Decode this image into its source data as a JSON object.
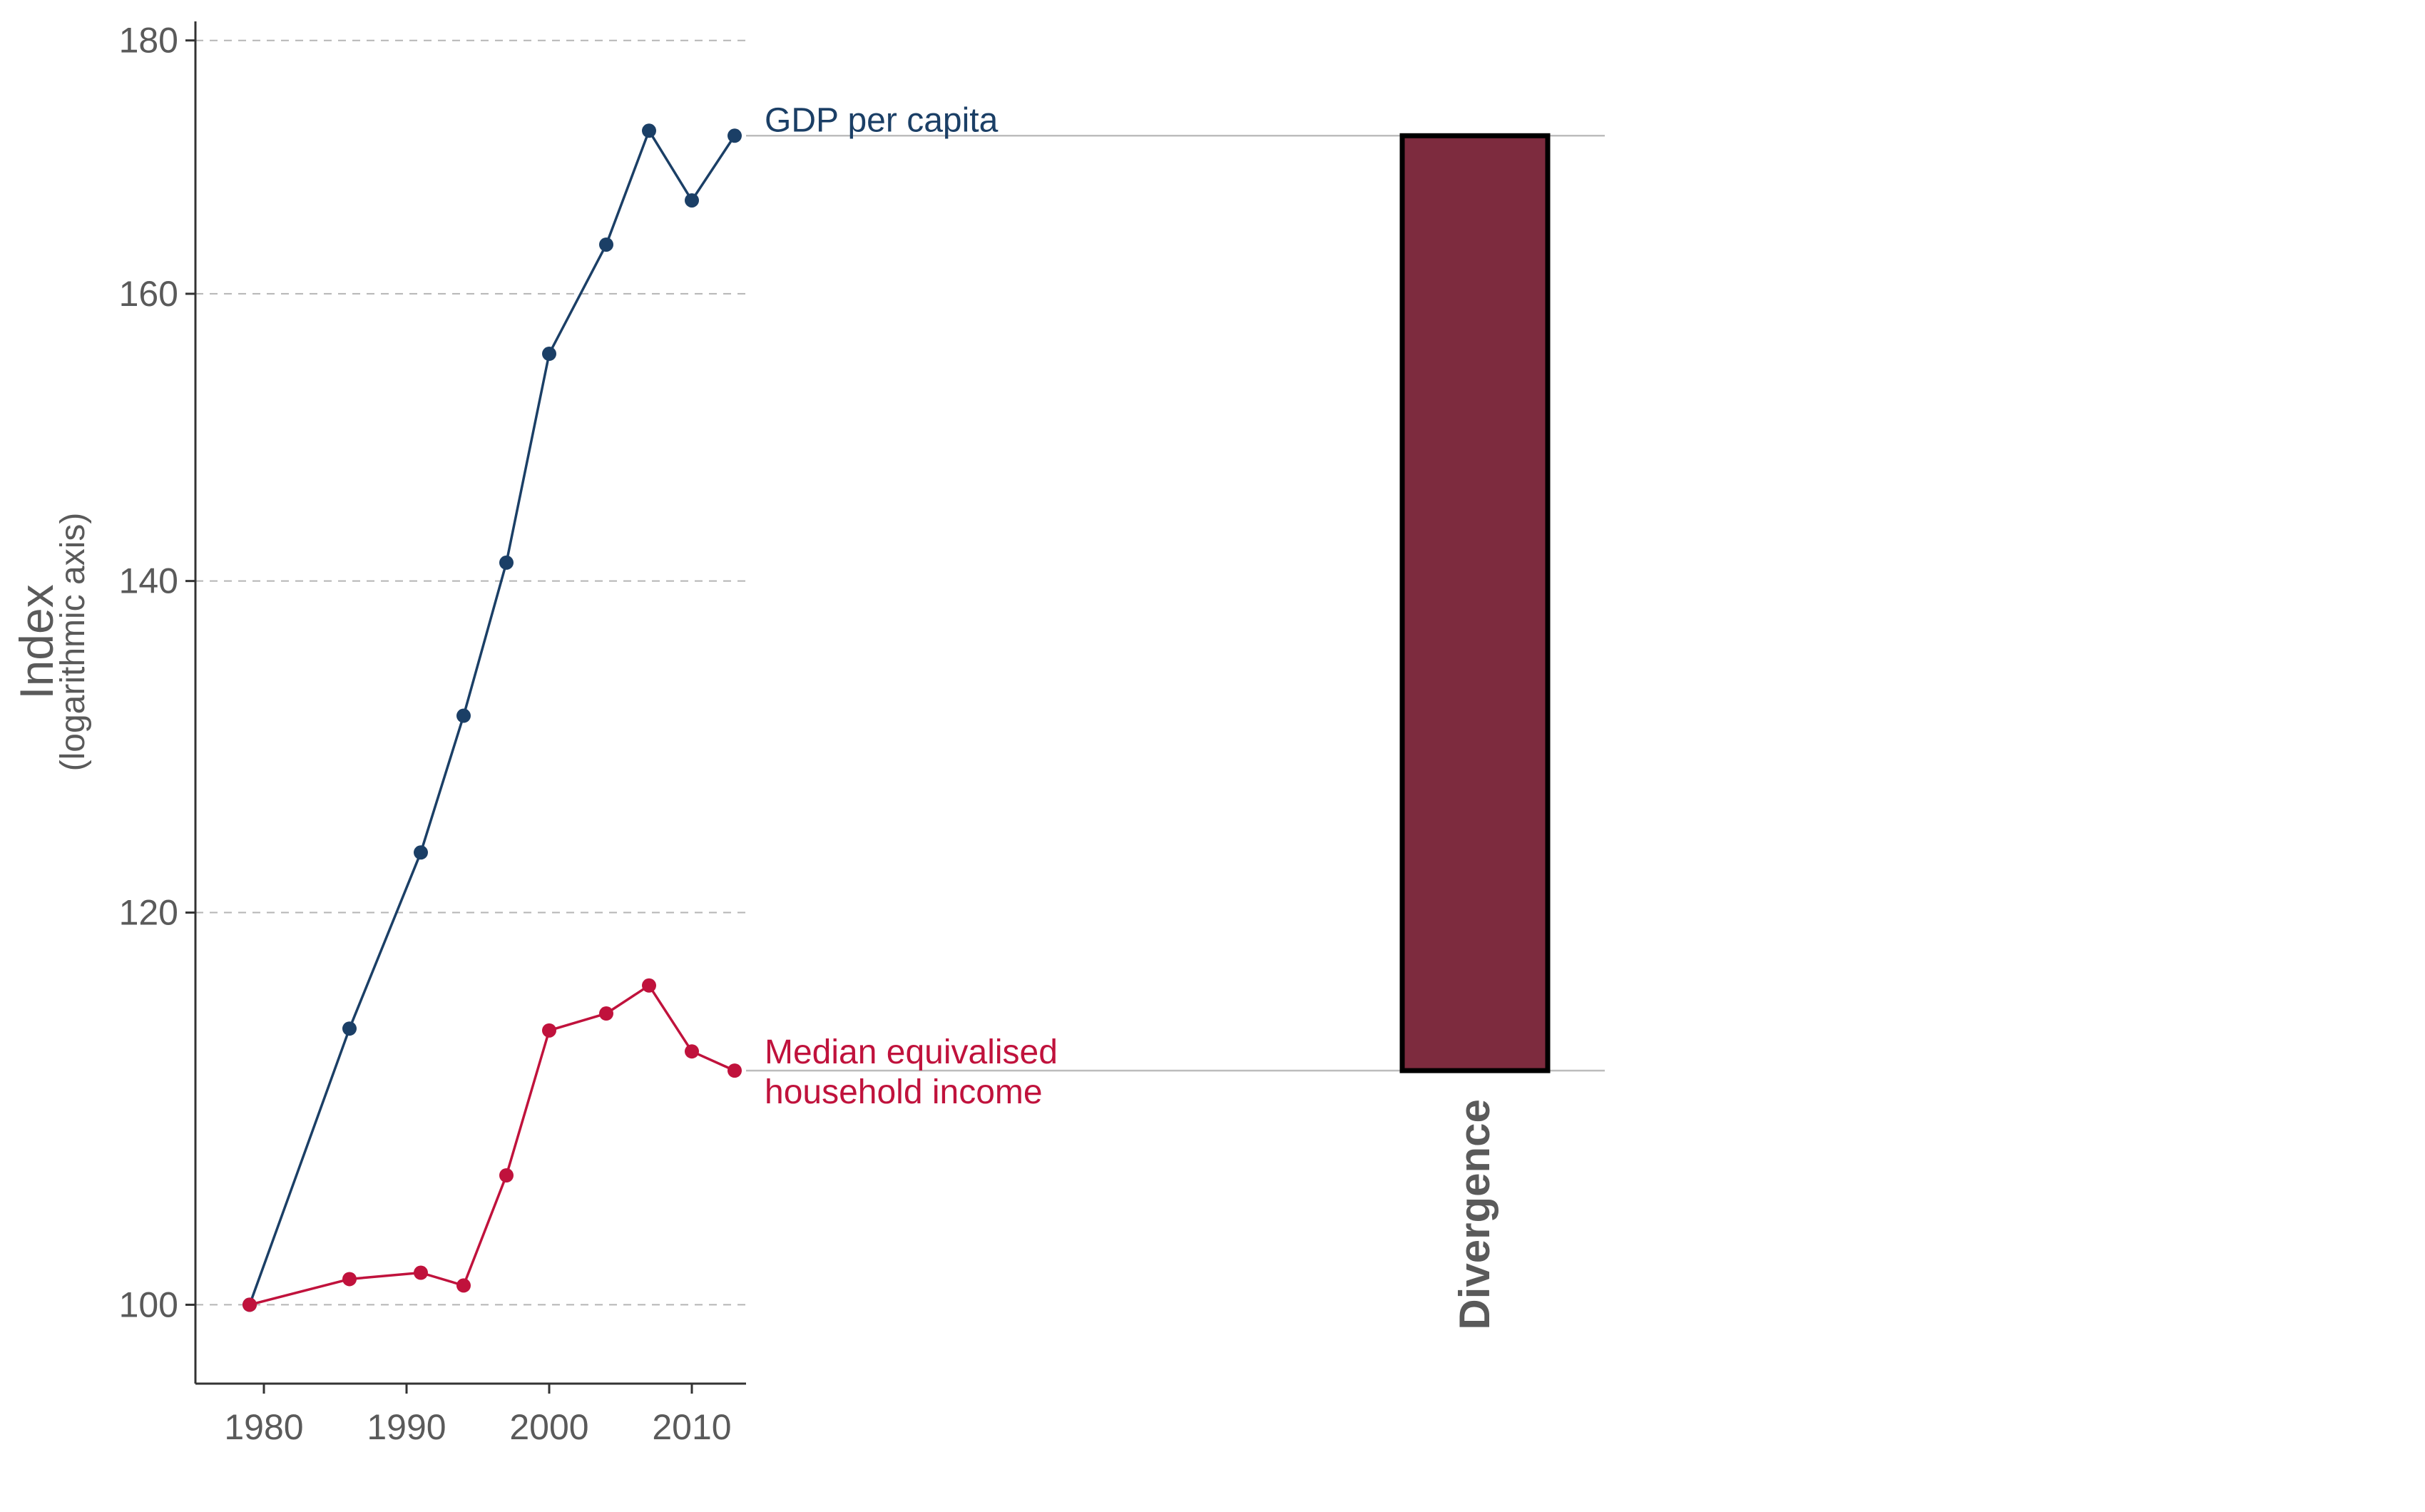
{
  "chart_data": {
    "type": "line",
    "ylabel": "Index",
    "ylabel_sub": "(logarithmic axis)",
    "y_scale": "log",
    "ylim": [
      96.4,
      181.6
    ],
    "xlim": [
      1975.2,
      2013.8
    ],
    "yticks": [
      100,
      120,
      140,
      160,
      180
    ],
    "xticks": [
      1980,
      1990,
      2000,
      2010
    ],
    "grid": "horizontal dashed",
    "series": [
      {
        "name": "GDP per capita",
        "color": "#1b3f66",
        "x": [
          1979,
          1986,
          1991,
          1994,
          1997,
          2000,
          2004,
          2007,
          2010,
          2013
        ],
        "y": [
          100,
          113.7,
          123.4,
          131.5,
          141.2,
          155.6,
          163.7,
          172.6,
          167.1,
          172.2
        ]
      },
      {
        "name": "Median equivalised household income",
        "name_lines": [
          "Median equivalised",
          "household income"
        ],
        "color": "#c0123c",
        "x": [
          1979,
          1986,
          1991,
          1994,
          1997,
          2000,
          2004,
          2007,
          2010,
          2013
        ],
        "y": [
          100,
          101.2,
          101.5,
          100.9,
          106.2,
          113.6,
          114.5,
          116.0,
          112.5,
          111.5
        ]
      }
    ],
    "divergence": {
      "label": "Divergence",
      "from": 111.5,
      "to": 172.2,
      "color": "#7d2b3e"
    }
  }
}
